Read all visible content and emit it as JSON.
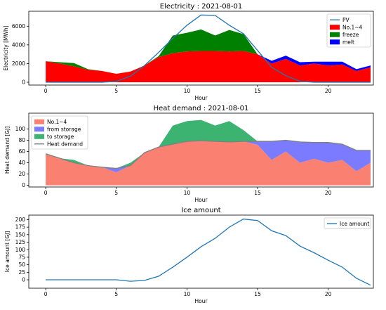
{
  "chart_data": [
    {
      "type": "area",
      "title": "Electricity : 2021-08-01",
      "xlabel": "Hour",
      "ylabel": "Electricity [MWh]",
      "xlim": [
        -1.2,
        23.2
      ],
      "ylim": [
        -300,
        7600
      ],
      "xticks": [
        0,
        5,
        10,
        15,
        20
      ],
      "yticks": [
        0,
        2000,
        4000,
        6000
      ],
      "legend": "top-right",
      "x": [
        0,
        1,
        2,
        3,
        4,
        5,
        6,
        7,
        8,
        9,
        10,
        11,
        12,
        13,
        14,
        15,
        16,
        17,
        18,
        19,
        20,
        21,
        22,
        23
      ],
      "series": [
        {
          "name": "No.1~4",
          "kind": "stack",
          "color": "#ff0000",
          "values": [
            2250,
            2000,
            1700,
            1350,
            1200,
            900,
            1150,
            1800,
            2700,
            3100,
            3300,
            3350,
            3350,
            3300,
            3350,
            3000,
            2000,
            2500,
            1800,
            2000,
            1800,
            1900,
            1200,
            1600
          ]
        },
        {
          "name": "freeze",
          "kind": "stack",
          "color": "#008000",
          "values": [
            0,
            150,
            350,
            50,
            0,
            0,
            0,
            0,
            100,
            1900,
            2000,
            2300,
            1650,
            2300,
            1800,
            0,
            0,
            0,
            0,
            0,
            0,
            0,
            0,
            0
          ]
        },
        {
          "name": "melt",
          "kind": "stack",
          "color": "#0000ff",
          "values": [
            0,
            0,
            0,
            0,
            0,
            0,
            0,
            0,
            0,
            0,
            0,
            0,
            0,
            0,
            0,
            0,
            300,
            350,
            350,
            200,
            400,
            300,
            200,
            200
          ]
        },
        {
          "name": "PV",
          "kind": "line",
          "color": "#1f77b4",
          "values": [
            0,
            0,
            0,
            0,
            0,
            100,
            650,
            1800,
            3200,
            4700,
            6100,
            7200,
            7150,
            6100,
            5200,
            3400,
            1600,
            700,
            100,
            0,
            0,
            0,
            0,
            0
          ]
        }
      ]
    },
    {
      "type": "area",
      "title": "Heat demand : 2021-08-01",
      "xlabel": "Hour",
      "ylabel": "Heat demand [GJ]",
      "xlim": [
        -1.2,
        23.2
      ],
      "ylim": [
        -3,
        128
      ],
      "xticks": [
        0,
        5,
        10,
        15,
        20
      ],
      "yticks": [
        0,
        20,
        40,
        60,
        80,
        100
      ],
      "legend": "top-left",
      "x": [
        0,
        1,
        2,
        3,
        4,
        5,
        6,
        7,
        8,
        9,
        10,
        11,
        12,
        13,
        14,
        15,
        16,
        17,
        18,
        19,
        20,
        21,
        22,
        23
      ],
      "series": [
        {
          "name": "No.1~4",
          "kind": "stack",
          "color": "#fa8072",
          "values": [
            56,
            48,
            40,
            35,
            32,
            23,
            35,
            58,
            68,
            73,
            78,
            79,
            78,
            77,
            78,
            72,
            45,
            60,
            40,
            47,
            40,
            45,
            25,
            40
          ]
        },
        {
          "name": "from storage",
          "kind": "stack",
          "color": "#7b7bff",
          "values": [
            0,
            0,
            0,
            0,
            0,
            7,
            0,
            0,
            0,
            0,
            0,
            0,
            0,
            0,
            0,
            6,
            33,
            20,
            37,
            29,
            36,
            28,
            37,
            22
          ]
        },
        {
          "name": "to storage",
          "kind": "stack",
          "color": "#3cb371",
          "values": [
            0,
            0,
            5,
            0,
            0,
            0,
            5,
            0,
            0,
            33,
            36,
            37,
            28,
            37,
            20,
            0,
            0,
            0,
            0,
            0,
            0,
            0,
            0,
            0
          ]
        },
        {
          "name": "Heat demand",
          "kind": "line",
          "color": "#808080",
          "values": [
            56,
            48,
            40,
            35,
            32,
            30,
            35,
            58,
            68,
            73,
            78,
            79,
            78,
            77,
            78,
            78,
            78,
            80,
            77,
            76,
            76,
            73,
            62,
            62
          ]
        }
      ]
    },
    {
      "type": "line",
      "title": "Ice amount",
      "xlabel": "Hour",
      "ylabel": "Ice amount [GJ]",
      "xlim": [
        -1.2,
        23.2
      ],
      "ylim": [
        -28,
        215
      ],
      "xticks": [
        0,
        5,
        10,
        15,
        20
      ],
      "yticks": [
        0,
        25,
        50,
        75,
        100,
        125,
        150,
        175,
        200
      ],
      "legend": "top-right",
      "x": [
        0,
        1,
        2,
        3,
        4,
        5,
        6,
        7,
        8,
        9,
        10,
        11,
        12,
        13,
        14,
        15,
        16,
        17,
        18,
        19,
        20,
        21,
        22,
        23
      ],
      "series": [
        {
          "name": "Ice amount",
          "kind": "line",
          "color": "#1f77b4",
          "values": [
            0,
            0,
            0,
            0,
            0,
            0,
            -5,
            -2,
            12,
            42,
            75,
            110,
            138,
            175,
            202,
            197,
            163,
            147,
            112,
            90,
            65,
            42,
            5,
            -18
          ]
        }
      ]
    }
  ]
}
